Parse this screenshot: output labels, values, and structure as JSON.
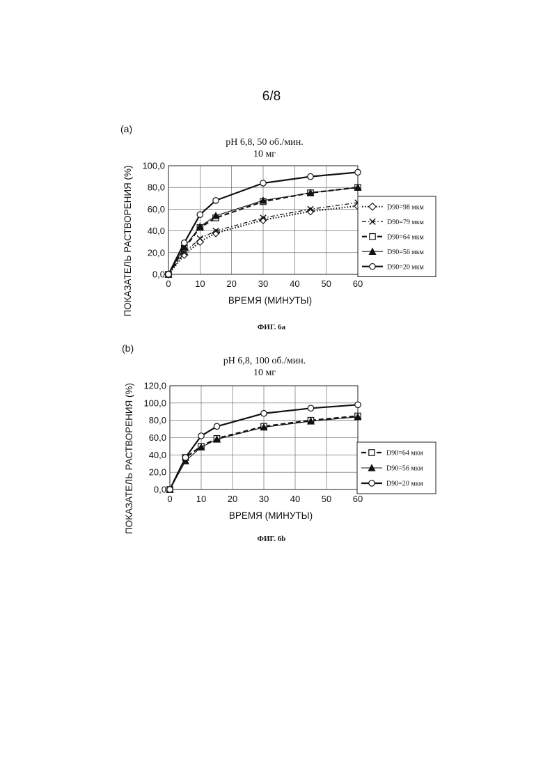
{
  "page": {
    "number": "6/8"
  },
  "charts": [
    {
      "panel_label": "(a)",
      "title_line1": "pH 6,8, 50 об./мин.",
      "title_line2": "10 мг",
      "xlabel": "ВРЕМЯ (МИНУТЫ)",
      "ylabel": "ПОКАЗАТЕЛЬ РАСТВОРЕНИЯ (%)",
      "caption": "ФИГ. 6а",
      "x_ticks": [
        "0",
        "10",
        "20",
        "30",
        "40",
        "50",
        "60"
      ],
      "y_ticks": [
        "0,0",
        "20,0",
        "40,0",
        "60,0",
        "80,0",
        "100,0"
      ],
      "legend": [
        "D90=98 мкм",
        "D90=79 мкм",
        "D90=64 мкм",
        "D90=56 мкм",
        "D90=20 мкм"
      ]
    },
    {
      "panel_label": "(b)",
      "title_line1": "pH 6,8, 100 об./мин.",
      "title_line2": "10 мг",
      "xlabel": "ВРЕМЯ (МИНУТЫ)",
      "ylabel": "ПОКАЗАТЕЛЬ РАСТВОРЕНИЯ (%)",
      "caption": "ФИГ. 6b",
      "x_ticks": [
        "0",
        "10",
        "20",
        "30",
        "40",
        "50",
        "60"
      ],
      "y_ticks": [
        "0,0",
        "20,0",
        "40,0",
        "60,0",
        "80,0",
        "100,0",
        "120,0"
      ],
      "legend": [
        "D90=64 мкм",
        "D90=56 мкм",
        "D90=20 мкм"
      ]
    }
  ],
  "chart_data": [
    {
      "type": "line",
      "title": "pH 6,8, 50 об./мин. 10 мг",
      "xlabel": "ВРЕМЯ (МИНУТЫ)",
      "ylabel": "ПОКАЗАТЕЛЬ РАСТВОРЕНИЯ (%)",
      "xlim": [
        0,
        60
      ],
      "ylim": [
        0,
        100
      ],
      "grid": true,
      "legend_position": "right",
      "x": [
        0,
        5,
        10,
        15,
        30,
        45,
        60
      ],
      "series": [
        {
          "name": "D90=98 мкм",
          "marker": "diamond",
          "line": "dotted",
          "values": [
            0,
            18,
            30,
            38,
            50,
            58,
            63
          ]
        },
        {
          "name": "D90=79 мкм",
          "marker": "cross",
          "line": "dashdot",
          "values": [
            0,
            20,
            33,
            40,
            52,
            60,
            66
          ]
        },
        {
          "name": "D90=64 мкм",
          "marker": "square",
          "line": "dashed",
          "values": [
            0,
            24,
            43,
            52,
            67,
            75,
            80
          ]
        },
        {
          "name": "D90=56 мкм",
          "marker": "triangle",
          "line": "solid-thin",
          "values": [
            0,
            25,
            44,
            54,
            68,
            75,
            80
          ]
        },
        {
          "name": "D90=20 мкм",
          "marker": "circle",
          "line": "solid",
          "values": [
            0,
            29,
            55,
            68,
            84,
            90,
            94
          ]
        }
      ]
    },
    {
      "type": "line",
      "title": "pH 6,8, 100 об./мин. 10 мг",
      "xlabel": "ВРЕМЯ (МИНУТЫ)",
      "ylabel": "ПОКАЗАТЕЛЬ РАСТВОРЕНИЯ (%)",
      "xlim": [
        0,
        60
      ],
      "ylim": [
        0,
        120
      ],
      "grid": true,
      "legend_position": "right",
      "x": [
        0,
        5,
        10,
        15,
        30,
        45,
        60
      ],
      "series": [
        {
          "name": "D90=64 мкм",
          "marker": "square",
          "line": "dashed",
          "values": [
            0,
            37,
            50,
            59,
            73,
            80,
            85
          ]
        },
        {
          "name": "D90=56 мкм",
          "marker": "triangle",
          "line": "solid-thin",
          "values": [
            0,
            33,
            49,
            58,
            72,
            79,
            84
          ]
        },
        {
          "name": "D90=20 мкм",
          "marker": "circle",
          "line": "solid",
          "values": [
            0,
            37,
            62,
            73,
            88,
            94,
            98
          ]
        }
      ]
    }
  ]
}
